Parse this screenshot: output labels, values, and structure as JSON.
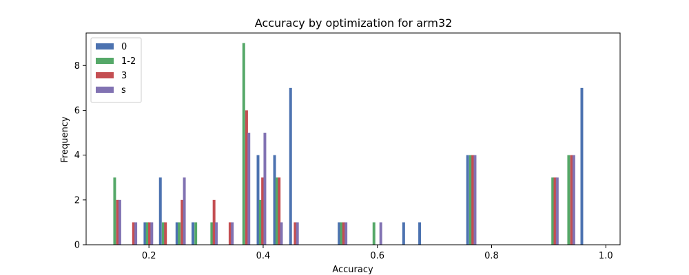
{
  "chart_data": {
    "type": "bar",
    "title": "Accuracy by optimization for arm32",
    "xlabel": "Accuracy",
    "ylabel": "Frequency",
    "xlim": [
      0.09,
      1.025
    ],
    "ylim": [
      0,
      9.45
    ],
    "xticks": [
      {
        "value": 0.2,
        "label": "0.2"
      },
      {
        "value": 0.4,
        "label": "0.4"
      },
      {
        "value": 0.6,
        "label": "0.6"
      },
      {
        "value": 0.8,
        "label": "0.8"
      },
      {
        "value": 1.0,
        "label": "1.0"
      }
    ],
    "yticks": [
      {
        "value": 0,
        "label": "0"
      },
      {
        "value": 2,
        "label": "2"
      },
      {
        "value": 4,
        "label": "4"
      },
      {
        "value": 6,
        "label": "6"
      },
      {
        "value": 8,
        "label": "8"
      }
    ],
    "grid": false,
    "legend_position": "top-left",
    "bar_width": 0.0048,
    "series": [
      {
        "name": "0",
        "color": "#4c72b0",
        "points": [
          {
            "x": 0.193,
            "y": 1
          },
          {
            "x": 0.22,
            "y": 3
          },
          {
            "x": 0.249,
            "y": 1
          },
          {
            "x": 0.277,
            "y": 1
          },
          {
            "x": 0.391,
            "y": 4
          },
          {
            "x": 0.42,
            "y": 4
          },
          {
            "x": 0.448,
            "y": 7
          },
          {
            "x": 0.533,
            "y": 1
          },
          {
            "x": 0.646,
            "y": 1
          },
          {
            "x": 0.674,
            "y": 1
          },
          {
            "x": 0.758,
            "y": 4
          },
          {
            "x": 0.958,
            "y": 7
          }
        ]
      },
      {
        "name": "1-2",
        "color": "#55a868",
        "points": [
          {
            "x": 0.14,
            "y": 3
          },
          {
            "x": 0.197,
            "y": 1
          },
          {
            "x": 0.225,
            "y": 1
          },
          {
            "x": 0.253,
            "y": 1
          },
          {
            "x": 0.282,
            "y": 1
          },
          {
            "x": 0.31,
            "y": 1
          },
          {
            "x": 0.366,
            "y": 9
          },
          {
            "x": 0.395,
            "y": 2
          },
          {
            "x": 0.424,
            "y": 3
          },
          {
            "x": 0.537,
            "y": 1
          },
          {
            "x": 0.594,
            "y": 1
          },
          {
            "x": 0.763,
            "y": 4
          },
          {
            "x": 0.907,
            "y": 3
          },
          {
            "x": 0.935,
            "y": 4
          }
        ]
      },
      {
        "name": "3",
        "color": "#c44e52",
        "points": [
          {
            "x": 0.145,
            "y": 2
          },
          {
            "x": 0.173,
            "y": 1
          },
          {
            "x": 0.201,
            "y": 1
          },
          {
            "x": 0.229,
            "y": 1
          },
          {
            "x": 0.258,
            "y": 2
          },
          {
            "x": 0.314,
            "y": 2
          },
          {
            "x": 0.342,
            "y": 1
          },
          {
            "x": 0.371,
            "y": 6
          },
          {
            "x": 0.399,
            "y": 3
          },
          {
            "x": 0.428,
            "y": 3
          },
          {
            "x": 0.456,
            "y": 1
          },
          {
            "x": 0.541,
            "y": 1
          },
          {
            "x": 0.767,
            "y": 4
          },
          {
            "x": 0.911,
            "y": 3
          },
          {
            "x": 0.94,
            "y": 4
          }
        ]
      },
      {
        "name": "s",
        "color": "#8172b2",
        "points": [
          {
            "x": 0.149,
            "y": 2
          },
          {
            "x": 0.177,
            "y": 1
          },
          {
            "x": 0.205,
            "y": 1
          },
          {
            "x": 0.262,
            "y": 3
          },
          {
            "x": 0.318,
            "y": 1
          },
          {
            "x": 0.346,
            "y": 1
          },
          {
            "x": 0.375,
            "y": 5
          },
          {
            "x": 0.403,
            "y": 5
          },
          {
            "x": 0.432,
            "y": 1
          },
          {
            "x": 0.46,
            "y": 1
          },
          {
            "x": 0.545,
            "y": 1
          },
          {
            "x": 0.606,
            "y": 1
          },
          {
            "x": 0.771,
            "y": 4
          },
          {
            "x": 0.915,
            "y": 3
          },
          {
            "x": 0.944,
            "y": 4
          }
        ]
      }
    ]
  }
}
